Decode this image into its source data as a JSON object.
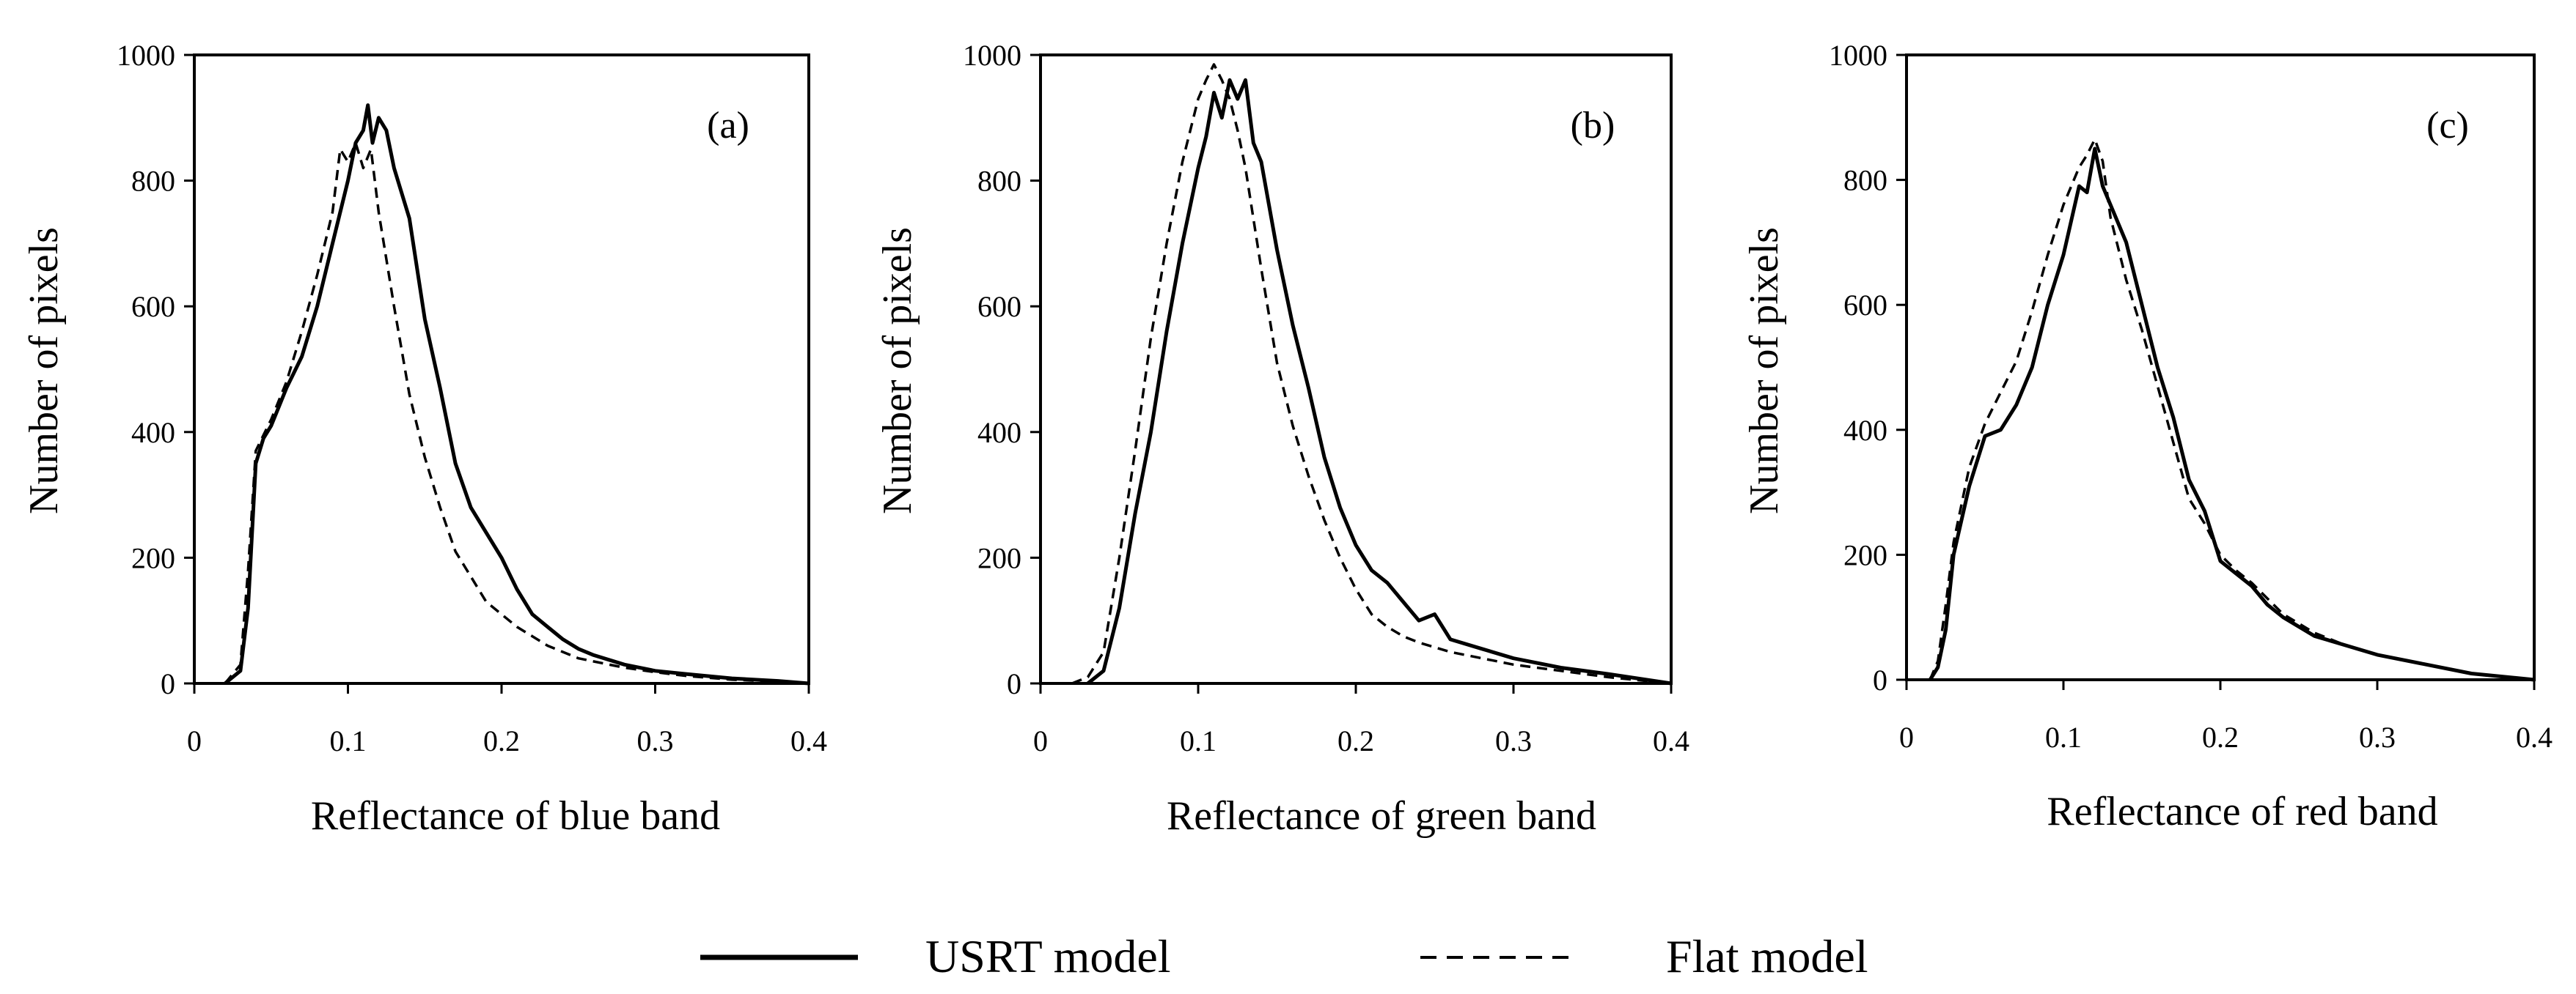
{
  "figure": {
    "legend": {
      "position": "bottom-center",
      "entries": [
        {
          "name": "USRT model",
          "style": "solid"
        },
        {
          "name": "Flat model",
          "style": "dashed"
        }
      ]
    }
  },
  "chart_data": [
    {
      "type": "line",
      "panel_label": "(a)",
      "title": "",
      "xlabel": "Reflectance of blue band",
      "ylabel": "Number of pixels",
      "xlim": [
        0,
        0.4
      ],
      "ylim": [
        0,
        1000
      ],
      "xticks": [
        0,
        0.1,
        0.2,
        0.3,
        0.4
      ],
      "xtick_labels": [
        "0",
        "0.1",
        "0.2",
        "0.3",
        "0.4"
      ],
      "yticks": [
        0,
        200,
        400,
        600,
        800,
        1000
      ],
      "ytick_labels": [
        "0",
        "200",
        "400",
        "600",
        "800",
        "1000"
      ],
      "grid": false,
      "series": [
        {
          "name": "USRT model",
          "style": "solid",
          "x": [
            0.02,
            0.03,
            0.035,
            0.04,
            0.045,
            0.05,
            0.06,
            0.07,
            0.08,
            0.09,
            0.1,
            0.105,
            0.11,
            0.113,
            0.116,
            0.12,
            0.125,
            0.13,
            0.14,
            0.15,
            0.16,
            0.17,
            0.18,
            0.19,
            0.2,
            0.21,
            0.22,
            0.23,
            0.24,
            0.25,
            0.26,
            0.28,
            0.3,
            0.32,
            0.35,
            0.38,
            0.4
          ],
          "y": [
            0,
            20,
            120,
            350,
            390,
            410,
            470,
            520,
            600,
            700,
            800,
            860,
            880,
            920,
            860,
            900,
            880,
            820,
            740,
            580,
            470,
            350,
            280,
            240,
            200,
            150,
            110,
            90,
            70,
            55,
            45,
            30,
            20,
            15,
            8,
            4,
            0
          ]
        },
        {
          "name": "Flat model",
          "style": "dashed",
          "x": [
            0.02,
            0.03,
            0.035,
            0.04,
            0.05,
            0.06,
            0.07,
            0.08,
            0.09,
            0.095,
            0.1,
            0.105,
            0.11,
            0.115,
            0.12,
            0.13,
            0.14,
            0.15,
            0.16,
            0.17,
            0.18,
            0.19,
            0.2,
            0.21,
            0.22,
            0.23,
            0.24,
            0.25,
            0.26,
            0.28,
            0.3,
            0.32,
            0.35,
            0.38,
            0.4
          ],
          "y": [
            0,
            30,
            180,
            370,
            420,
            480,
            560,
            650,
            750,
            850,
            830,
            860,
            820,
            850,
            750,
            600,
            460,
            360,
            280,
            210,
            170,
            130,
            110,
            90,
            75,
            60,
            50,
            40,
            35,
            25,
            18,
            12,
            6,
            3,
            0
          ]
        }
      ]
    },
    {
      "type": "line",
      "panel_label": "(b)",
      "title": "",
      "xlabel": "Reflectance of green band",
      "ylabel": "Number of pixels",
      "xlim": [
        0,
        0.4
      ],
      "ylim": [
        0,
        1000
      ],
      "xticks": [
        0,
        0.1,
        0.2,
        0.3,
        0.4
      ],
      "xtick_labels": [
        "0",
        "0.1",
        "0.2",
        "0.3",
        "0.4"
      ],
      "yticks": [
        0,
        200,
        400,
        600,
        800,
        1000
      ],
      "ytick_labels": [
        "0",
        "200",
        "400",
        "600",
        "800",
        "1000"
      ],
      "grid": false,
      "series": [
        {
          "name": "USRT model",
          "style": "solid",
          "x": [
            0.03,
            0.04,
            0.05,
            0.06,
            0.07,
            0.08,
            0.09,
            0.1,
            0.105,
            0.11,
            0.115,
            0.12,
            0.125,
            0.13,
            0.135,
            0.14,
            0.15,
            0.16,
            0.17,
            0.18,
            0.19,
            0.2,
            0.21,
            0.22,
            0.23,
            0.24,
            0.25,
            0.26,
            0.28,
            0.3,
            0.33,
            0.36,
            0.4
          ],
          "y": [
            0,
            20,
            120,
            270,
            400,
            560,
            700,
            820,
            870,
            940,
            900,
            960,
            930,
            960,
            860,
            830,
            690,
            570,
            470,
            360,
            280,
            220,
            180,
            160,
            130,
            100,
            110,
            70,
            55,
            40,
            25,
            15,
            0
          ]
        },
        {
          "name": "Flat model",
          "style": "dashed",
          "x": [
            0.02,
            0.03,
            0.04,
            0.05,
            0.06,
            0.07,
            0.08,
            0.09,
            0.1,
            0.105,
            0.11,
            0.115,
            0.12,
            0.125,
            0.13,
            0.14,
            0.15,
            0.16,
            0.17,
            0.18,
            0.19,
            0.2,
            0.21,
            0.22,
            0.23,
            0.24,
            0.26,
            0.28,
            0.3,
            0.33,
            0.36,
            0.4
          ],
          "y": [
            0,
            10,
            50,
            200,
            370,
            550,
            700,
            830,
            930,
            960,
            985,
            960,
            930,
            880,
            820,
            660,
            510,
            410,
            330,
            260,
            200,
            150,
            110,
            90,
            75,
            65,
            50,
            40,
            30,
            20,
            10,
            0
          ]
        }
      ]
    },
    {
      "type": "line",
      "panel_label": "(c)",
      "title": "",
      "xlabel": "Reflectance of red band",
      "ylabel": "Number of pixels",
      "xlim": [
        0,
        0.4
      ],
      "ylim": [
        0,
        1000
      ],
      "xticks": [
        0,
        0.1,
        0.2,
        0.3,
        0.4
      ],
      "xtick_labels": [
        "0",
        "0.1",
        "0.2",
        "0.3",
        "0.4"
      ],
      "yticks": [
        0,
        200,
        400,
        600,
        800,
        1000
      ],
      "ytick_labels": [
        "0",
        "200",
        "400",
        "600",
        "800",
        "1000"
      ],
      "grid": false,
      "series": [
        {
          "name": "USRT model",
          "style": "solid",
          "x": [
            0.015,
            0.02,
            0.025,
            0.03,
            0.04,
            0.05,
            0.06,
            0.07,
            0.08,
            0.09,
            0.1,
            0.11,
            0.115,
            0.12,
            0.125,
            0.13,
            0.14,
            0.15,
            0.16,
            0.17,
            0.18,
            0.19,
            0.2,
            0.21,
            0.22,
            0.23,
            0.24,
            0.26,
            0.28,
            0.3,
            0.33,
            0.36,
            0.4
          ],
          "y": [
            0,
            20,
            80,
            200,
            310,
            390,
            400,
            440,
            500,
            600,
            680,
            790,
            780,
            850,
            790,
            760,
            700,
            600,
            500,
            420,
            320,
            270,
            190,
            170,
            150,
            120,
            100,
            70,
            55,
            40,
            25,
            10,
            0
          ]
        },
        {
          "name": "Flat model",
          "style": "dashed",
          "x": [
            0.015,
            0.02,
            0.025,
            0.03,
            0.04,
            0.05,
            0.06,
            0.07,
            0.08,
            0.09,
            0.1,
            0.11,
            0.115,
            0.12,
            0.125,
            0.13,
            0.14,
            0.15,
            0.16,
            0.17,
            0.18,
            0.19,
            0.2,
            0.21,
            0.22,
            0.23,
            0.24,
            0.26,
            0.28,
            0.3,
            0.33,
            0.36,
            0.4
          ],
          "y": [
            0,
            30,
            120,
            220,
            340,
            410,
            460,
            510,
            590,
            680,
            760,
            820,
            840,
            865,
            830,
            740,
            640,
            560,
            470,
            380,
            290,
            250,
            200,
            175,
            155,
            130,
            105,
            75,
            55,
            40,
            25,
            10,
            0
          ]
        }
      ]
    }
  ]
}
